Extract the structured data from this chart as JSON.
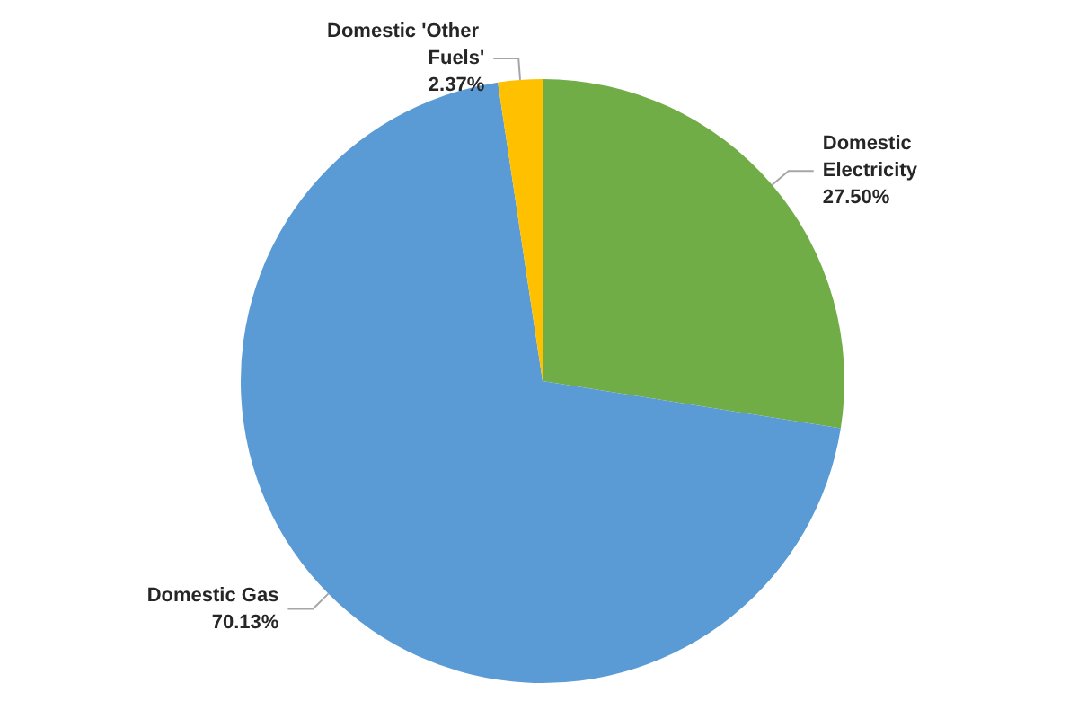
{
  "chart_data": {
    "type": "pie",
    "categories": [
      "Domestic Electricity",
      "Domestic Gas",
      "Domestic 'Other Fuels'"
    ],
    "values": [
      27.5,
      70.13,
      2.37
    ],
    "colors": [
      "#70ad47",
      "#5b9bd5",
      "#ffc000"
    ],
    "value_labels": [
      "27.50%",
      "70.13%",
      "2.37%"
    ]
  }
}
